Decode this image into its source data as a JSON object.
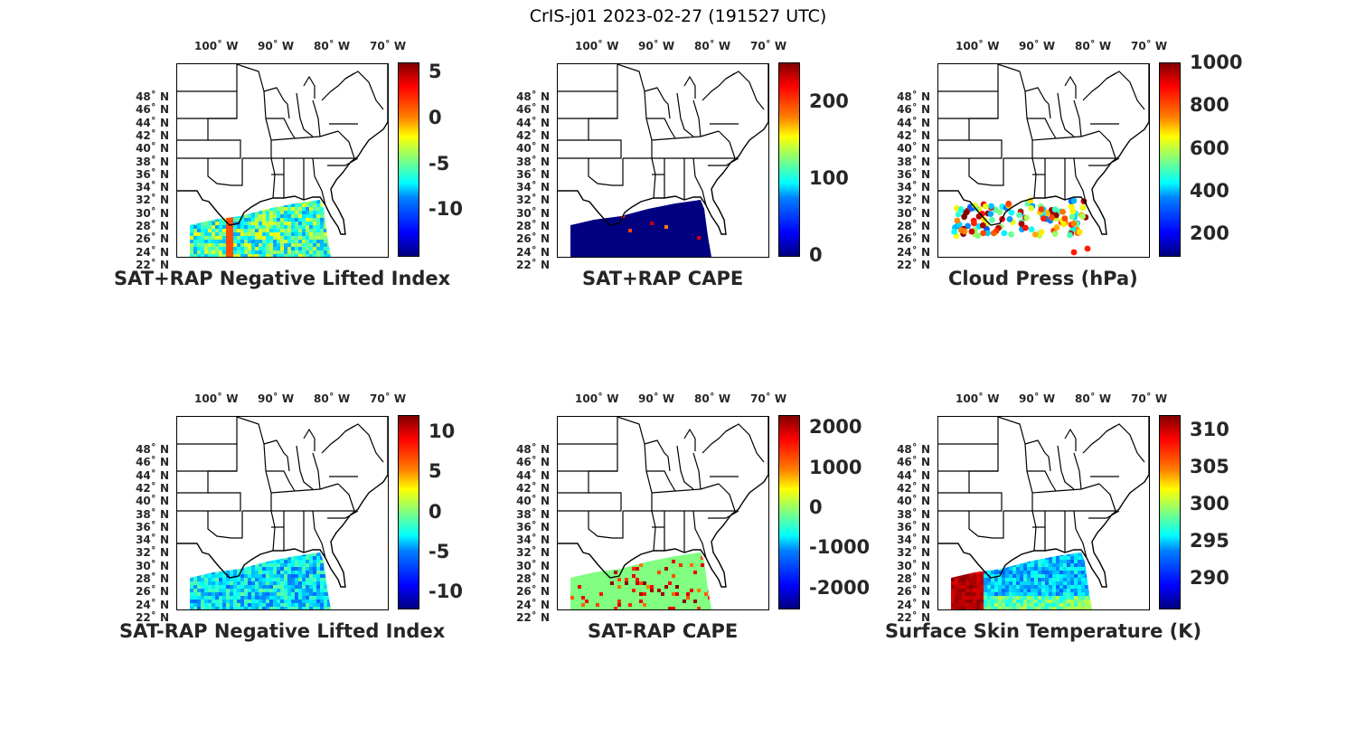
{
  "figure": {
    "title": "CrIS-j01 2023-02-27 (191527 UTC)",
    "lon_ticks": [
      "100˚ W",
      "90˚ W",
      "80˚ W",
      "70˚ W"
    ],
    "lat_ticks": [
      "48˚ N",
      "46˚ N",
      "44˚ N",
      "42˚ N",
      "40˚ N",
      "38˚ N",
      "36˚ N",
      "34˚ N",
      "32˚ N",
      "30˚ N",
      "28˚ N",
      "26˚ N",
      "24˚ N",
      "22˚ N"
    ]
  },
  "panels": [
    {
      "title": "SAT+RAP Negative Lifted Index",
      "colorbar_ticks": [
        "5",
        "0",
        "-5",
        "-10"
      ],
      "colorbar_range": [
        -15,
        6
      ],
      "colormap": "jet"
    },
    {
      "title": "SAT+RAP CAPE",
      "colorbar_ticks": [
        "200",
        "100",
        "0"
      ],
      "colorbar_range": [
        0,
        250
      ],
      "colormap": "jet"
    },
    {
      "title": "Cloud Press (hPa)",
      "colorbar_ticks": [
        "1000",
        "800",
        "600",
        "400",
        "200"
      ],
      "colorbar_range": [
        100,
        1000
      ],
      "colormap": "jet"
    },
    {
      "title": "SAT-RAP Negative Lifted Index",
      "colorbar_ticks": [
        "10",
        "5",
        "0",
        "-5",
        "-10"
      ],
      "colorbar_range": [
        -12,
        12
      ],
      "colormap": "jet"
    },
    {
      "title": "SAT-RAP CAPE",
      "colorbar_ticks": [
        "2000",
        "1000",
        "0",
        "-1000",
        "-2000"
      ],
      "colorbar_range": [
        -2500,
        2300
      ],
      "colormap": "jet"
    },
    {
      "title": "Surface Skin Temperature (K)",
      "colorbar_ticks": [
        "310",
        "305",
        "300",
        "295",
        "290"
      ],
      "colorbar_range": [
        286,
        312
      ],
      "colormap": "jet"
    }
  ]
}
